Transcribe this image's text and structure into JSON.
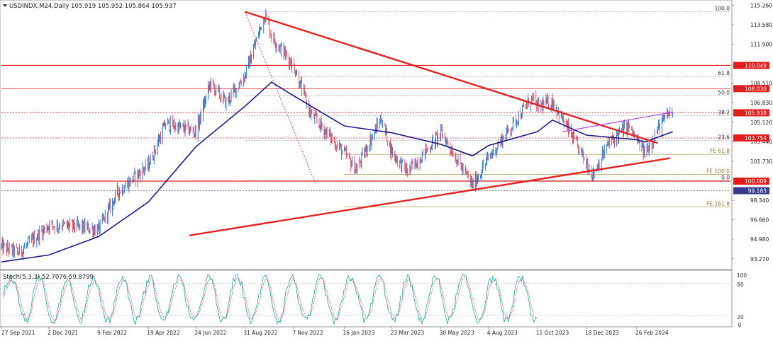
{
  "header": {
    "symbol_label": "USDINDX,M24,Daily",
    "ohlc_label": "105.919 105.952 105.864 105.937"
  },
  "colors": {
    "up_candle": "#1f6fcc",
    "down_candle": "#e0455a",
    "ma_line": "#1b1b8c",
    "trend_line": "#e52222",
    "fib_line": "#555555",
    "fib_ext_line": "#b4a76a",
    "channel_line": "#b048d8",
    "stoch_main": "#1aa39a",
    "stoch_signal": "#e04858",
    "price_tag": "#e11c1c",
    "current_tag": "#3a3a8c"
  },
  "chart_data": [
    {
      "type": "candlestick",
      "symbol": "USDINDX.M24",
      "timeframe": "Daily",
      "last_ohlc": {
        "open": 105.919,
        "high": 105.952,
        "low": 105.864,
        "close": 105.937
      },
      "ylim": [
        92.4,
        115.6
      ],
      "y_ticks": [
        115.26,
        113.58,
        111.9,
        108.51,
        106.83,
        105.12,
        103.44,
        101.73,
        98.34,
        96.66,
        94.98,
        93.27
      ],
      "x_ticks": [
        "27 Sep 2021",
        "2 Dec 2021",
        "9 Feb 2022",
        "19 Apr 2022",
        "24 Jun 2022",
        "31 Aug 2022",
        "7 Nov 2022",
        "16 Jan 2023",
        "23 Mar 2023",
        "30 May 2023",
        "4 Aug 2023",
        "11 Oct 2023",
        "18 Dec 2023",
        "26 Feb 2024"
      ],
      "price_path": [
        [
          "27 Sep 2021",
          94.3
        ],
        [
          "21 Oct 2021",
          93.8
        ],
        [
          "1 Nov 2021",
          94.4
        ],
        [
          "2 Dec 2021",
          96.2
        ],
        [
          "5 Jan 2022",
          96.1
        ],
        [
          "9 Feb 2022",
          95.8
        ],
        [
          "7 Mar 2022",
          99.0
        ],
        [
          "19 Apr 2022",
          101.4
        ],
        [
          "13 May 2022",
          105.0
        ],
        [
          "24 Jun 2022",
          104.3
        ],
        [
          "14 Jul 2022",
          108.5
        ],
        [
          "5 Aug 2022",
          106.8
        ],
        [
          "31 Aug 2022",
          109.2
        ],
        [
          "28 Sep 2022",
          114.5
        ],
        [
          "7 Oct 2022",
          112.6
        ],
        [
          "7 Nov 2022",
          110.0
        ],
        [
          "30 Nov 2022",
          105.9
        ],
        [
          "16 Jan 2023",
          102.4
        ],
        [
          "2 Feb 2023",
          101.0
        ],
        [
          "8 Mar 2023",
          105.5
        ],
        [
          "23 Mar 2023",
          102.5
        ],
        [
          "14 Apr 2023",
          100.8
        ],
        [
          "31 May 2023",
          104.2
        ],
        [
          "13 Jul 2023",
          99.6
        ],
        [
          "4 Aug 2023",
          102.0
        ],
        [
          "3 Oct 2023",
          107.2
        ],
        [
          "11 Oct 2023",
          106.5
        ],
        [
          "1 Nov 2023",
          106.9
        ],
        [
          "27 Dec 2023",
          100.6
        ],
        [
          "18 Jan 2024",
          103.3
        ],
        [
          "14 Feb 2024",
          104.8
        ],
        [
          "8 Mar 2024",
          102.4
        ],
        [
          "26 Mar 2024",
          104.5
        ],
        [
          "12 Apr 2024",
          106.0
        ],
        [
          "16 Apr 2024",
          105.9
        ]
      ],
      "moving_average": [
        [
          "27 Sep 2021",
          93.0
        ],
        [
          "2 Dec 2021",
          93.6
        ],
        [
          "9 Feb 2022",
          95.2
        ],
        [
          "19 Apr 2022",
          98.2
        ],
        [
          "24 Jun 2022",
          103.0
        ],
        [
          "31 Aug 2022",
          106.5
        ],
        [
          "7 Oct 2022",
          108.6
        ],
        [
          "7 Nov 2022",
          107.4
        ],
        [
          "16 Jan 2023",
          104.8
        ],
        [
          "23 Mar 2023",
          104.2
        ],
        [
          "30 May 2023",
          103.2
        ],
        [
          "13 Jul 2023",
          102.2
        ],
        [
          "4 Aug 2023",
          103.1
        ],
        [
          "11 Oct 2023",
          104.3
        ],
        [
          "1 Nov 2023",
          105.3
        ],
        [
          "18 Dec 2023",
          104.0
        ],
        [
          "26 Feb 2024",
          103.6
        ],
        [
          "8 Mar 2024",
          103.4
        ],
        [
          "16 Apr 2024",
          104.3
        ]
      ],
      "horizontal_levels": [
        {
          "price": 110.049,
          "label": "110.049"
        },
        {
          "price": 108.03,
          "label": "108.030"
        },
        {
          "price": 105.938,
          "label": "105.938"
        },
        {
          "price": 103.754,
          "label": "103.754"
        },
        {
          "price": 100.009,
          "label": "100.009"
        },
        {
          "price": 99.183,
          "label": "99.183"
        }
      ],
      "fibonacci_retracement": [
        {
          "level": "100.0",
          "price": 114.7
        },
        {
          "level": "61.8",
          "price": 109.1
        },
        {
          "level": "50.0",
          "price": 107.4
        },
        {
          "level": "38.2",
          "price": 105.7
        },
        {
          "level": "23.6",
          "price": 103.55
        },
        {
          "level": "0.0",
          "price": 100.05
        }
      ],
      "fibonacci_expansion": [
        {
          "level": "FE 61.8",
          "price": 102.33
        },
        {
          "level": "FE 100.0",
          "price": 100.59
        },
        {
          "level": "FE 161.8",
          "price": 97.78
        }
      ],
      "trendlines": [
        {
          "name": "descending resistance",
          "from": [
            "31 Aug 2022",
            114.7
          ],
          "to": [
            "26 Mar 2024",
            103.3
          ]
        },
        {
          "name": "ascending support",
          "from": [
            "15 Jun 2022",
            95.3
          ],
          "to": [
            "12 Apr 2024",
            102.0
          ]
        },
        {
          "name": "short-term channel",
          "from": [
            "15 Nov 2023",
            104.3
          ],
          "to": [
            "16 Apr 2024",
            106.0
          ]
        }
      ]
    },
    {
      "type": "line",
      "indicator": "Stoch(5,3,3)",
      "header_label": "Stoch(5,3,3) 52.7076 59.8799",
      "main_value": 52.7076,
      "signal_value": 59.8799,
      "ylim": [
        0,
        100
      ],
      "y_ticks": [
        0,
        20,
        80,
        100
      ],
      "overbought": 80,
      "oversold": 20
    }
  ]
}
